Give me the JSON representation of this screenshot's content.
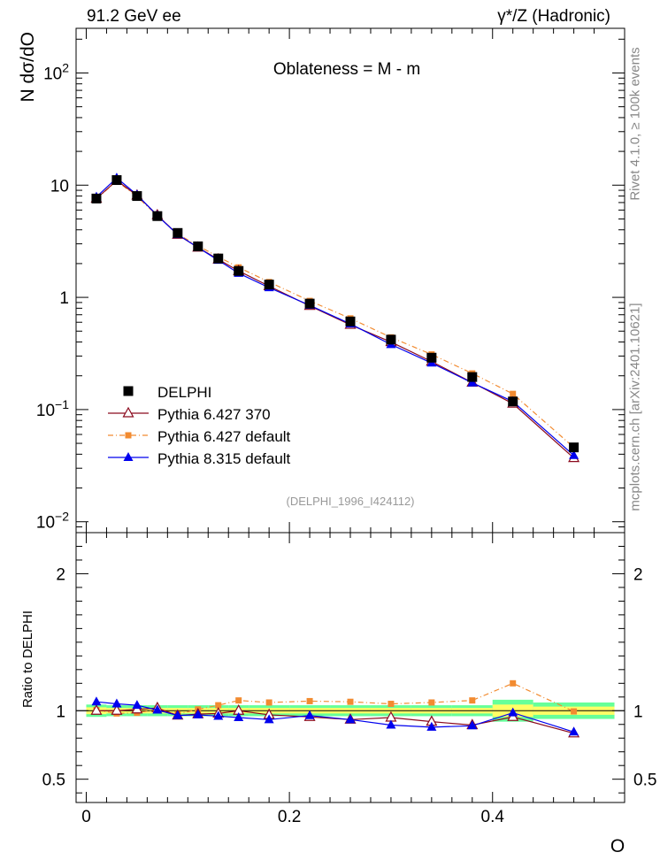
{
  "header": {
    "energy": "91.2 GeV ee",
    "process": "γ*/Z (Hadronic)"
  },
  "side_text": {
    "rivet": "Rivet 4.1.0, ≥ 100k events",
    "source": "mcplots.cern.ch [arXiv:2401.10621]"
  },
  "colors": {
    "delphi": "#000000",
    "py6_370": "#8b0a1e",
    "py6_default": "#f28b30",
    "py8_default": "#0000ee",
    "band_inner": "#ffff66",
    "band_outer": "#66ff99"
  },
  "chart_data": [
    {
      "type": "line",
      "title": "Oblateness = M - m",
      "xlabel": "",
      "ylabel": "N  dσ/dO",
      "ylog": true,
      "xlim": [
        -0.01,
        0.53
      ],
      "ylim": [
        0.008,
        250
      ],
      "yticks": [
        {
          "value": 0.01,
          "label": "10",
          "exp": "−2"
        },
        {
          "value": 0.1,
          "label": "10",
          "exp": "−1"
        },
        {
          "value": 1,
          "label": "1",
          "exp": ""
        },
        {
          "value": 10,
          "label": "10",
          "exp": ""
        },
        {
          "value": 100,
          "label": "10",
          "exp": "2"
        }
      ],
      "watermark": "(DELPHI_1996_I424112)",
      "x": [
        0.01,
        0.03,
        0.05,
        0.07,
        0.09,
        0.11,
        0.13,
        0.15,
        0.18,
        0.22,
        0.26,
        0.3,
        0.34,
        0.38,
        0.42,
        0.48
      ],
      "series": [
        {
          "name": "DELPHI",
          "key": "delphi",
          "marker": "square",
          "values": [
            7.6,
            11.1,
            8.0,
            5.3,
            3.75,
            2.85,
            2.22,
            1.72,
            1.3,
            0.88,
            0.61,
            0.42,
            0.29,
            0.195,
            0.118,
            0.046
          ]
        },
        {
          "name": "Pythia 6.427 370",
          "key": "py6_370",
          "marker": "triangle-open",
          "values": [
            7.6,
            11.0,
            8.1,
            5.4,
            3.62,
            2.78,
            2.18,
            1.72,
            1.26,
            0.84,
            0.57,
            0.4,
            0.268,
            0.174,
            0.113,
            0.037
          ]
        },
        {
          "name": "Pythia 6.427 default",
          "key": "py6_default",
          "marker": "square-small",
          "values": [
            7.55,
            10.9,
            7.9,
            5.35,
            3.67,
            2.88,
            2.3,
            1.85,
            1.37,
            0.93,
            0.65,
            0.44,
            0.31,
            0.21,
            0.138,
            0.046
          ]
        },
        {
          "name": "Pythia 8.315 default",
          "key": "py8_default",
          "marker": "triangle",
          "values": [
            7.85,
            11.6,
            8.2,
            5.35,
            3.63,
            2.78,
            2.14,
            1.64,
            1.22,
            0.85,
            0.58,
            0.38,
            0.26,
            0.173,
            0.118,
            0.039
          ]
        }
      ]
    },
    {
      "type": "line",
      "title": "",
      "xlabel": "O",
      "ylabel": "Ratio to DELPHI",
      "xlim": [
        -0.01,
        0.53
      ],
      "ylim": [
        0.33,
        2.3
      ],
      "xticks": [
        0,
        0.2,
        0.4
      ],
      "xtick_labels": [
        "0",
        "0.2",
        "0.4"
      ],
      "yticks": [
        0.5,
        1,
        2
      ],
      "ytick_labels": [
        "0.5",
        "1",
        "2"
      ],
      "x": [
        0.01,
        0.03,
        0.05,
        0.07,
        0.09,
        0.11,
        0.13,
        0.15,
        0.18,
        0.22,
        0.26,
        0.3,
        0.34,
        0.38,
        0.42,
        0.48
      ],
      "bin_edges": [
        0.0,
        0.02,
        0.04,
        0.06,
        0.08,
        0.1,
        0.12,
        0.14,
        0.16,
        0.2,
        0.24,
        0.28,
        0.32,
        0.36,
        0.4,
        0.44,
        0.52
      ],
      "band_inner": [
        0.025,
        0.02,
        0.02,
        0.02,
        0.02,
        0.02,
        0.02,
        0.02,
        0.02,
        0.02,
        0.02,
        0.02,
        0.02,
        0.02,
        0.045,
        0.03
      ],
      "band_outer": [
        0.045,
        0.04,
        0.04,
        0.04,
        0.04,
        0.04,
        0.04,
        0.04,
        0.04,
        0.04,
        0.04,
        0.04,
        0.04,
        0.04,
        0.08,
        0.06
      ],
      "series": [
        {
          "name": "Pythia 6.427 370",
          "key": "py6_370",
          "marker": "triangle-open",
          "values": [
            1.0,
            1.0,
            1.01,
            1.02,
            0.965,
            0.975,
            0.98,
            1.0,
            0.97,
            0.955,
            0.935,
            0.95,
            0.92,
            0.895,
            0.955,
            0.835
          ]
        },
        {
          "name": "Pythia 6.427 default",
          "key": "py6_default",
          "marker": "square-small",
          "values": [
            1.005,
            0.98,
            0.985,
            1.01,
            0.975,
            1.01,
            1.04,
            1.075,
            1.06,
            1.07,
            1.065,
            1.05,
            1.06,
            1.075,
            1.2,
            0.995
          ]
        },
        {
          "name": "Pythia 8.315 default",
          "key": "py8_default",
          "marker": "triangle",
          "values": [
            1.065,
            1.05,
            1.04,
            1.005,
            0.965,
            0.97,
            0.96,
            0.95,
            0.935,
            0.965,
            0.935,
            0.895,
            0.88,
            0.89,
            0.985,
            0.845
          ]
        }
      ]
    }
  ]
}
